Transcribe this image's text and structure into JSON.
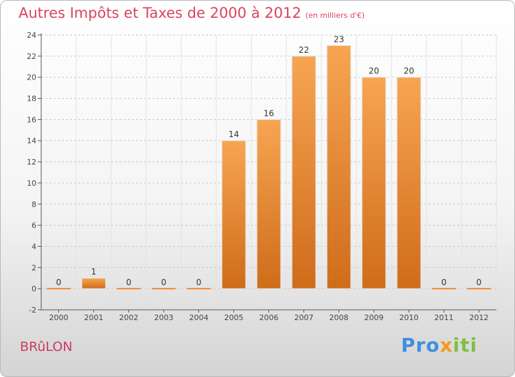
{
  "header": {
    "title": "Autres Impôts et Taxes de 2000 à 2012",
    "subtitle": "(en milliers d'€)"
  },
  "footer": {
    "location": "BRûLON",
    "brand": {
      "p1": "Pro",
      "p2": "x",
      "p3": "iti"
    }
  },
  "colors": {
    "bar": "#f08a2e",
    "title": "#d9455c",
    "axis": "#555555",
    "grid": "#c8c8c8"
  },
  "chart_data": {
    "type": "bar",
    "title": "Autres Impôts et Taxes de 2000 à 2012",
    "subtitle": "(en milliers d'€)",
    "categories": [
      "2000",
      "2001",
      "2002",
      "2003",
      "2004",
      "2005",
      "2006",
      "2007",
      "2008",
      "2009",
      "2010",
      "2011",
      "2012"
    ],
    "values": [
      0,
      1,
      0,
      0,
      0,
      14,
      16,
      22,
      23,
      20,
      20,
      0,
      0
    ],
    "value_labels": [
      "0",
      "1",
      "0",
      "0",
      "0",
      "14",
      "16",
      "22",
      "23",
      "20",
      "20",
      "0",
      "0"
    ],
    "ylim": [
      -2,
      24
    ],
    "yticks": [
      -2,
      0,
      2,
      4,
      6,
      8,
      10,
      12,
      14,
      16,
      18,
      20,
      22,
      24
    ],
    "grid": "dashed horizontal",
    "legend": "none"
  }
}
